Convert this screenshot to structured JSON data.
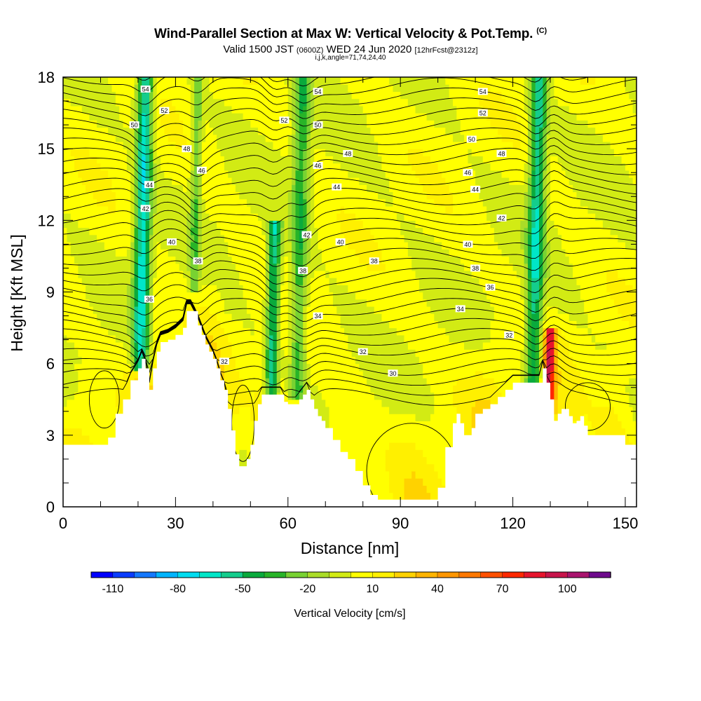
{
  "header": {
    "title": "Wind-Parallel Section at Max W: Vertical Velocity & Pot.Temp.",
    "title_mark": "(C)",
    "valid_prefix": "Valid 1500 JST",
    "valid_utc": "(0600Z)",
    "valid_date": "WED 24 Jun 2020",
    "forecast": "[12hrFcst@2312z]",
    "params": "i,j,k,angle=71,74,24,40"
  },
  "chart_data": {
    "type": "heatmap",
    "xlabel": "Distance [nm]",
    "ylabel": "Height [Kft MSL]",
    "xlim": [
      0,
      153
    ],
    "ylim": [
      0,
      18
    ],
    "x_ticks": [
      0,
      30,
      60,
      90,
      120,
      150
    ],
    "y_ticks": [
      0,
      3,
      6,
      9,
      12,
      15,
      18
    ],
    "grid": false,
    "terrain_height_kft": {
      "x": [
        0,
        3,
        6,
        9,
        12,
        14,
        16,
        18,
        20,
        21,
        22,
        23,
        24,
        25,
        26,
        28,
        30,
        32,
        33,
        34,
        36,
        37,
        38,
        39,
        40,
        41,
        42,
        43,
        44,
        45,
        46,
        47,
        48,
        49,
        50,
        51,
        52,
        53,
        54,
        55,
        56,
        57,
        58,
        59,
        60,
        61,
        62,
        63,
        64,
        65,
        66,
        67,
        68,
        69,
        70,
        72,
        74,
        76,
        78,
        80,
        82,
        84,
        86,
        88,
        90,
        92,
        94,
        96,
        98,
        100,
        102,
        104,
        105,
        106,
        107,
        108,
        109,
        110,
        112,
        114,
        116,
        118,
        120,
        122,
        124,
        126,
        127,
        128,
        129,
        130,
        131,
        132,
        133,
        134,
        135,
        136,
        137,
        138,
        139,
        140,
        142,
        144,
        146,
        148,
        150,
        153
      ],
      "y": [
        2.6,
        2.6,
        2.6,
        2.6,
        2.9,
        3.9,
        4.5,
        5.3,
        5.8,
        6.2,
        5.8,
        4.9,
        5.8,
        6.5,
        6.9,
        7.0,
        7.2,
        7.5,
        8.2,
        8.2,
        7.6,
        7.2,
        6.8,
        6.5,
        6.2,
        5.8,
        5.3,
        4.9,
        4.1,
        3.2,
        2.2,
        1.7,
        1.7,
        2.0,
        2.6,
        3.6,
        4.3,
        4.7,
        4.7,
        4.7,
        4.7,
        4.7,
        4.7,
        4.4,
        4.3,
        4.3,
        4.3,
        4.5,
        4.7,
        4.9,
        4.5,
        4.1,
        3.8,
        3.6,
        3.3,
        2.8,
        2.3,
        2.0,
        1.5,
        0.9,
        0.5,
        0.3,
        0.3,
        0.3,
        0.3,
        0.3,
        0.3,
        0.3,
        0.3,
        0.8,
        2.5,
        3.5,
        3.9,
        3.5,
        3.0,
        3.0,
        3.3,
        3.9,
        4.1,
        4.3,
        4.6,
        4.9,
        5.2,
        5.2,
        5.2,
        5.2,
        5.2,
        5.8,
        5.2,
        4.5,
        3.6,
        3.9,
        4.1,
        4.1,
        3.8,
        3.5,
        3.6,
        3.8,
        3.4,
        3.0,
        3.0,
        3.0,
        3.0,
        3.0,
        2.6,
        2.6
      ]
    },
    "updraft_cores": [
      {
        "x0": 20,
        "x1": 24,
        "ytop": 18,
        "ybottom": 5.8,
        "w": -70
      },
      {
        "x0": 35,
        "x1": 37,
        "ytop": 18,
        "ybottom": 9,
        "w": -30
      },
      {
        "x0": 55,
        "x1": 58,
        "ytop": 12,
        "ybottom": 4.5,
        "w": -60
      },
      {
        "x0": 62,
        "x1": 66,
        "ytop": 18,
        "ybottom": 4.5,
        "w": -40
      },
      {
        "x0": 125,
        "x1": 129,
        "ytop": 18,
        "ybottom": 5.0,
        "w": -60
      },
      {
        "x0": 129,
        "x1": 131,
        "ytop": 7.5,
        "ybottom": 4.0,
        "w": 80
      }
    ],
    "theta_contour_labels": [
      {
        "text": "54",
        "x": 22,
        "y": 17.5
      },
      {
        "text": "52",
        "x": 27,
        "y": 16.6
      },
      {
        "text": "50",
        "x": 19,
        "y": 16.0
      },
      {
        "text": "48",
        "x": 33,
        "y": 15.0
      },
      {
        "text": "46",
        "x": 37,
        "y": 14.1
      },
      {
        "text": "44",
        "x": 23,
        "y": 13.5
      },
      {
        "text": "42",
        "x": 22,
        "y": 12.5
      },
      {
        "text": "40",
        "x": 29,
        "y": 11.1
      },
      {
        "text": "38",
        "x": 36,
        "y": 10.3
      },
      {
        "text": "36",
        "x": 23,
        "y": 8.7
      },
      {
        "text": "54",
        "x": 68,
        "y": 17.4
      },
      {
        "text": "52",
        "x": 59,
        "y": 16.2
      },
      {
        "text": "50",
        "x": 68,
        "y": 16.0
      },
      {
        "text": "48",
        "x": 76,
        "y": 14.8
      },
      {
        "text": "46",
        "x": 68,
        "y": 14.3
      },
      {
        "text": "44",
        "x": 73,
        "y": 13.4
      },
      {
        "text": "42",
        "x": 65,
        "y": 11.4
      },
      {
        "text": "40",
        "x": 74,
        "y": 11.1
      },
      {
        "text": "38",
        "x": 64,
        "y": 9.9
      },
      {
        "text": "38",
        "x": 83,
        "y": 10.3
      },
      {
        "text": "34",
        "x": 68,
        "y": 8.0
      },
      {
        "text": "32",
        "x": 43,
        "y": 6.1
      },
      {
        "text": "32",
        "x": 80,
        "y": 6.5
      },
      {
        "text": "30",
        "x": 88,
        "y": 5.6
      },
      {
        "text": "54",
        "x": 112,
        "y": 17.4
      },
      {
        "text": "52",
        "x": 112,
        "y": 16.5
      },
      {
        "text": "50",
        "x": 109,
        "y": 15.4
      },
      {
        "text": "48",
        "x": 117,
        "y": 14.8
      },
      {
        "text": "46",
        "x": 108,
        "y": 14.0
      },
      {
        "text": "44",
        "x": 110,
        "y": 13.3
      },
      {
        "text": "42",
        "x": 117,
        "y": 12.1
      },
      {
        "text": "40",
        "x": 108,
        "y": 11.0
      },
      {
        "text": "38",
        "x": 110,
        "y": 10.0
      },
      {
        "text": "36",
        "x": 114,
        "y": 9.2
      },
      {
        "text": "34",
        "x": 106,
        "y": 8.3
      },
      {
        "text": "32",
        "x": 119,
        "y": 7.2
      }
    ]
  },
  "colorbar": {
    "title": "Vertical Velocity [cm/s]",
    "min": -120,
    "max": 120,
    "step": 10,
    "labels": [
      -110,
      -80,
      -50,
      -20,
      10,
      40,
      70,
      100
    ],
    "colors": [
      "#0000ff",
      "#0a3cff",
      "#1478ff",
      "#00b4ff",
      "#00dcf0",
      "#00e6c8",
      "#14cd8c",
      "#0aaa3c",
      "#28b428",
      "#78d232",
      "#aadc28",
      "#d2eb14",
      "#ffff00",
      "#fff000",
      "#ffd200",
      "#ffb400",
      "#ff9600",
      "#ff7800",
      "#ff5000",
      "#ff2800",
      "#e6142d",
      "#c8144b",
      "#aa146e",
      "#6e0a8c"
    ]
  }
}
